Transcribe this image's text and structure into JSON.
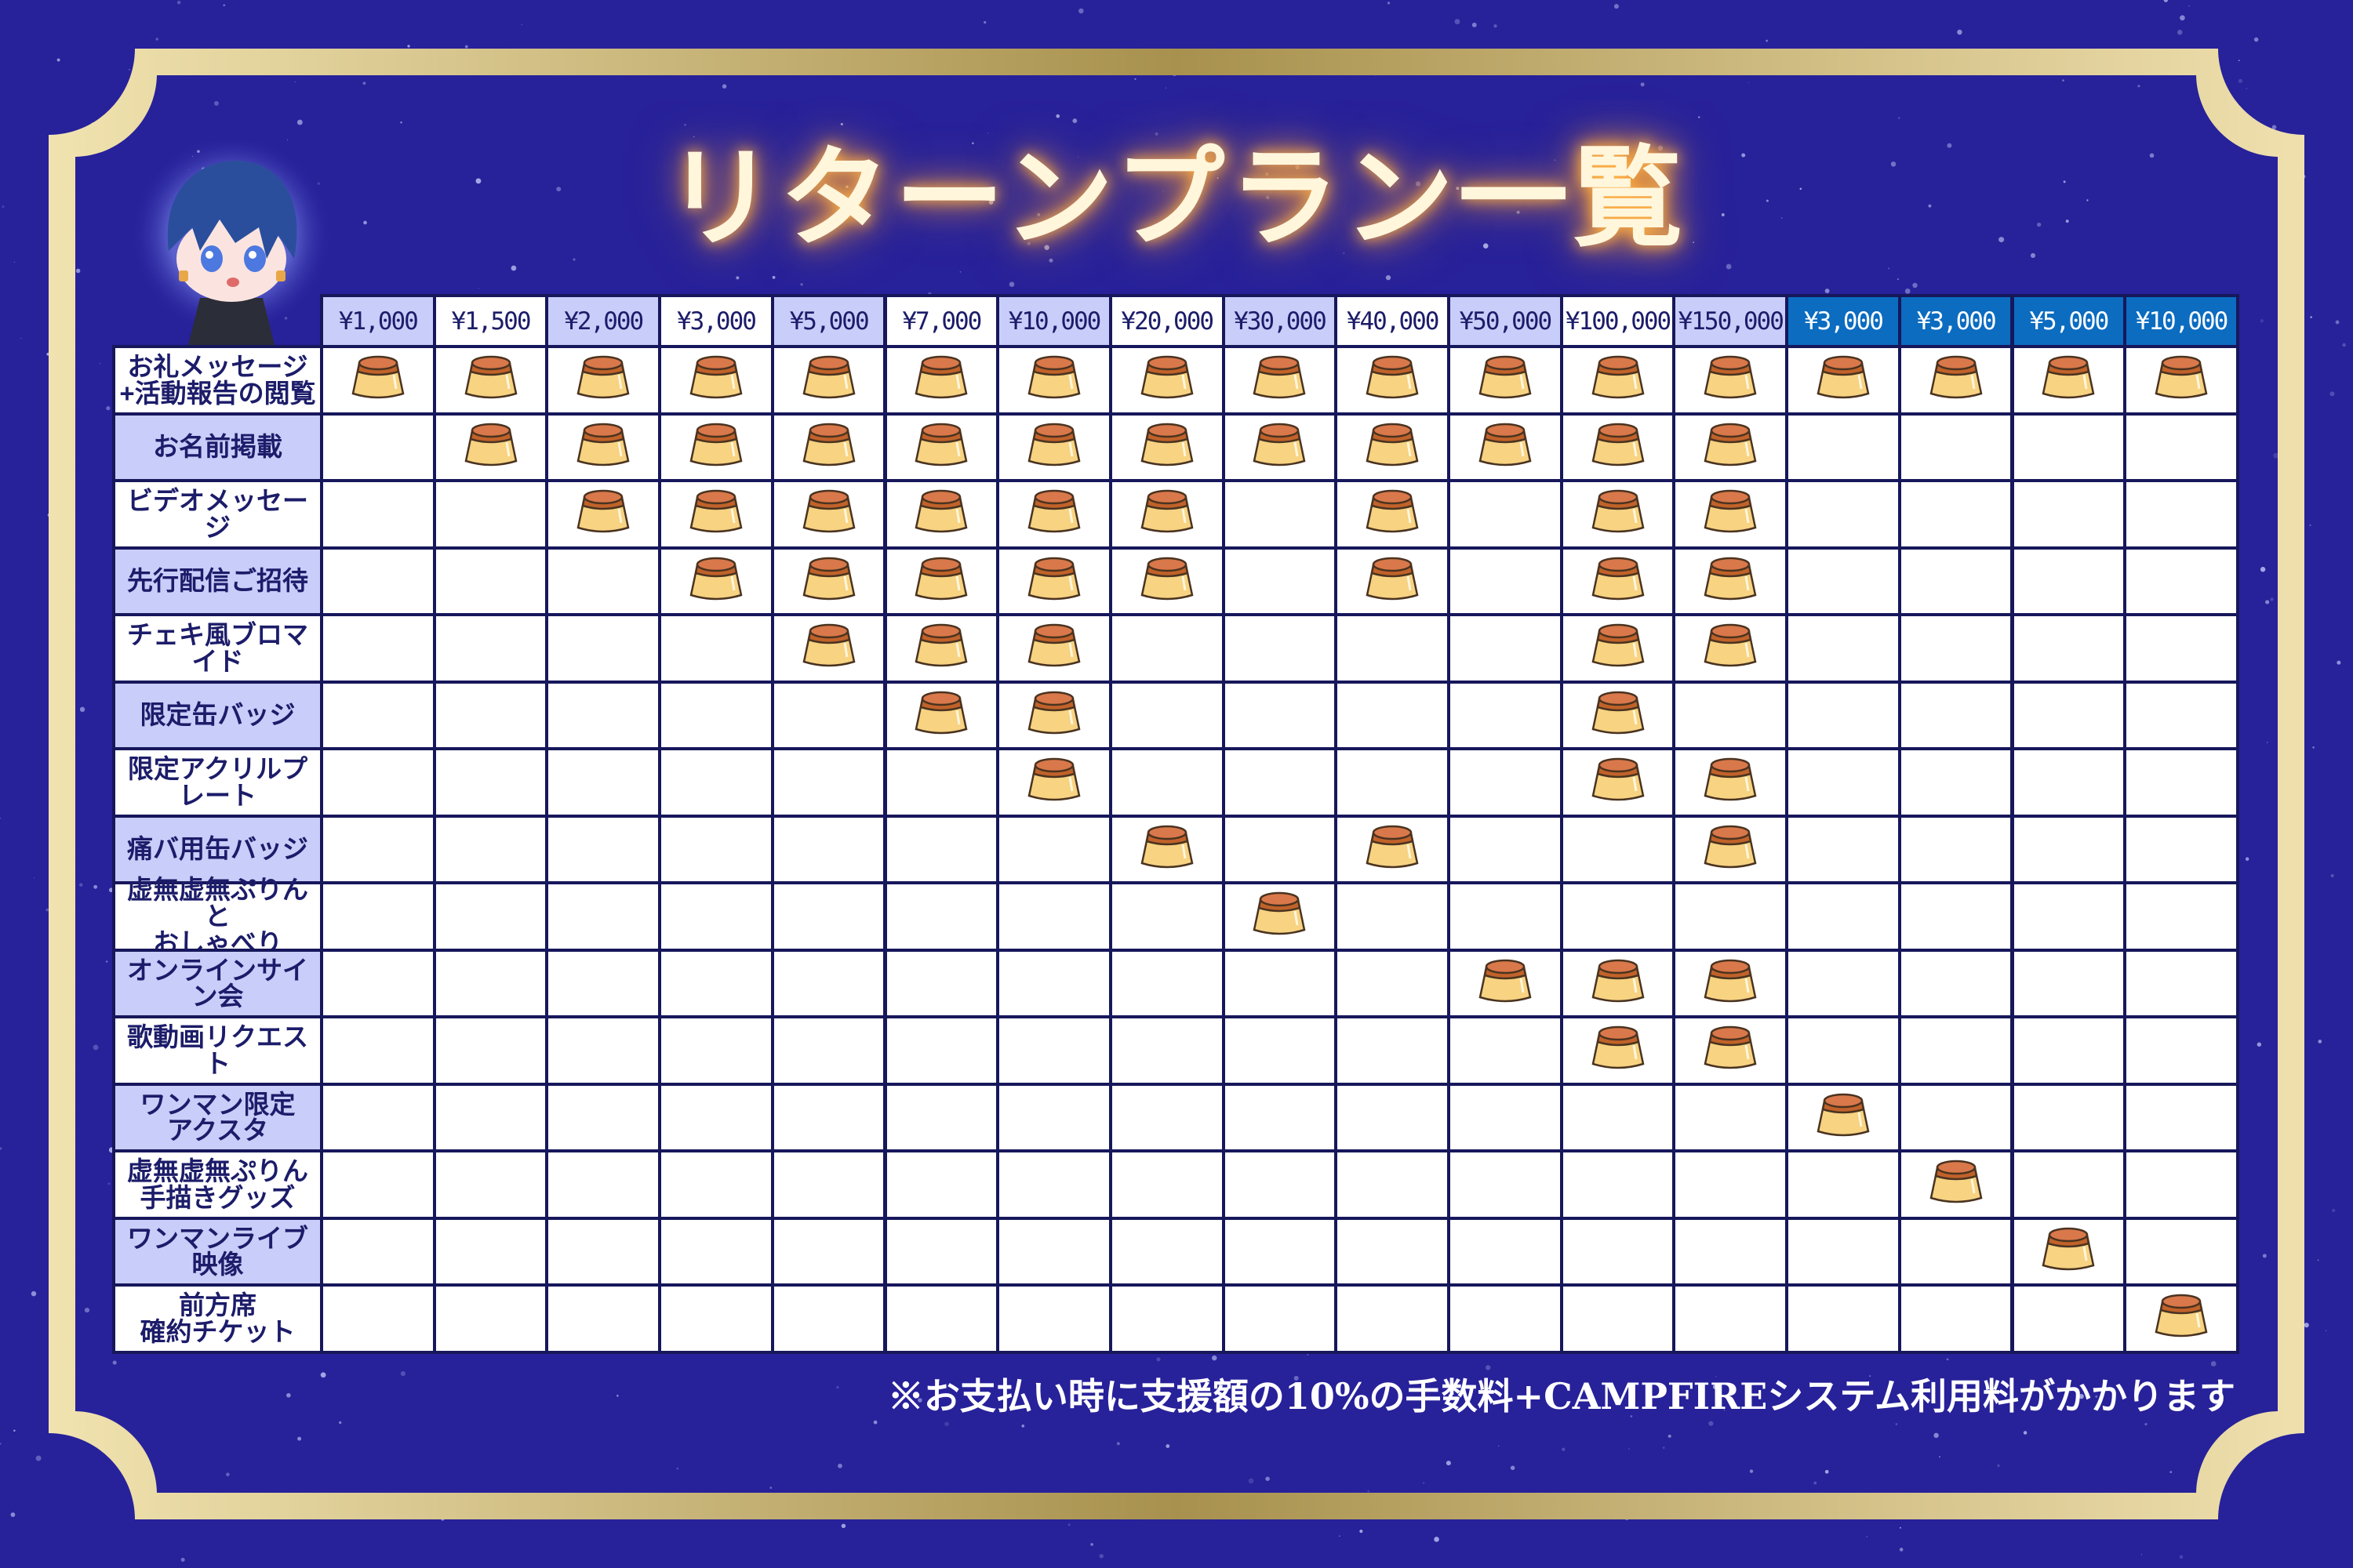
{
  "title": "リターンプラン一覧",
  "colors": {
    "background": "#27219a",
    "frame_gold": "#d8c98a",
    "header_lavender": "#c9cdf9",
    "header_blue": "#0b6cc0",
    "grid_line": "#17175c",
    "text": "#1c1c6a"
  },
  "icons": {
    "marker": "pudding-icon",
    "avatar": "chibi-character-avatar"
  },
  "columns": [
    {
      "label": "¥1,000",
      "style": "lav"
    },
    {
      "label": "¥1,500",
      "style": "wht"
    },
    {
      "label": "¥2,000",
      "style": "lav"
    },
    {
      "label": "¥3,000",
      "style": "wht"
    },
    {
      "label": "¥5,000",
      "style": "lav"
    },
    {
      "label": "¥7,000",
      "style": "wht"
    },
    {
      "label": "¥10,000",
      "style": "lav"
    },
    {
      "label": "¥20,000",
      "style": "wht"
    },
    {
      "label": "¥30,000",
      "style": "lav"
    },
    {
      "label": "¥40,000",
      "style": "wht"
    },
    {
      "label": "¥50,000",
      "style": "lav"
    },
    {
      "label": "¥100,000",
      "style": "wht"
    },
    {
      "label": "¥150,000",
      "style": "lav"
    },
    {
      "label": "¥3,000",
      "style": "blue"
    },
    {
      "label": "¥3,000",
      "style": "blue"
    },
    {
      "label": "¥5,000",
      "style": "blue"
    },
    {
      "label": "¥10,000",
      "style": "blue"
    }
  ],
  "rows": [
    {
      "label": "お礼メッセージ\n+活動報告の閲覧",
      "included": [
        0,
        1,
        2,
        3,
        4,
        5,
        6,
        7,
        8,
        9,
        10,
        11,
        12,
        13,
        14,
        15,
        16
      ]
    },
    {
      "label": "お名前掲載",
      "included": [
        1,
        2,
        3,
        4,
        5,
        6,
        7,
        8,
        9,
        10,
        11,
        12
      ]
    },
    {
      "label": "ビデオメッセージ",
      "included": [
        2,
        3,
        4,
        5,
        6,
        7,
        9,
        11,
        12
      ]
    },
    {
      "label": "先行配信ご招待",
      "included": [
        3,
        4,
        5,
        6,
        7,
        9,
        11,
        12
      ]
    },
    {
      "label": "チェキ風ブロマイド",
      "included": [
        4,
        5,
        6,
        11,
        12
      ]
    },
    {
      "label": "限定缶バッジ",
      "included": [
        5,
        6,
        11
      ]
    },
    {
      "label": "限定アクリルプレート",
      "included": [
        6,
        11,
        12
      ]
    },
    {
      "label": "痛バ用缶バッジ",
      "included": [
        7,
        9,
        12
      ]
    },
    {
      "label": "虚無虚無ぷりんと\nおしゃべり",
      "included": [
        8
      ]
    },
    {
      "label": "オンラインサイン会",
      "included": [
        10,
        11,
        12
      ]
    },
    {
      "label": "歌動画リクエスト",
      "included": [
        11,
        12
      ]
    },
    {
      "label": "ワンマン限定\nアクスタ",
      "included": [
        13
      ]
    },
    {
      "label": "虚無虚無ぷりん\n手描きグッズ",
      "included": [
        14
      ]
    },
    {
      "label": "ワンマンライブ映像",
      "included": [
        15
      ]
    },
    {
      "label": "前方席\n確約チケット",
      "included": [
        16
      ]
    }
  ],
  "footnote": "※お支払い時に支援額の10%の手数料+CAMPFIREシステム利用料がかかります"
}
